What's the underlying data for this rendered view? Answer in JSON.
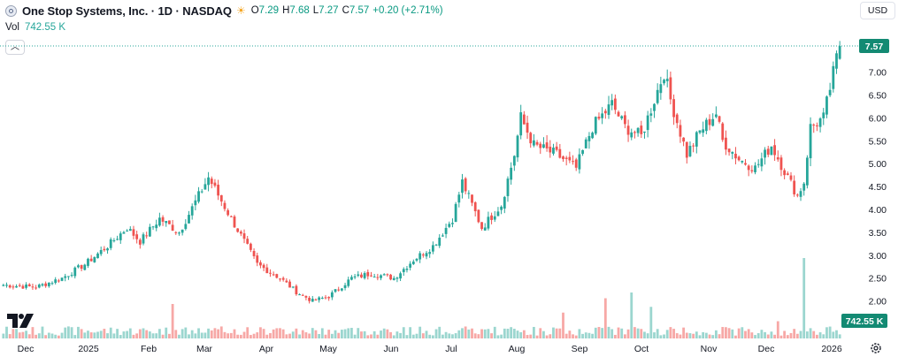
{
  "legend": {
    "title": "One Stop Systems, Inc. · 1D · NASDAQ",
    "sun_icon": "market-open-sun-icon",
    "open_label": "O",
    "open_value": "7.29",
    "high_label": "H",
    "high_value": "7.68",
    "low_label": "L",
    "low_value": "7.27",
    "close_label": "C",
    "close_value": "7.57",
    "change": "+0.20 (+2.71%)"
  },
  "volume": {
    "label": "Vol",
    "value": "742.55 K"
  },
  "controls": {
    "currency": "USD",
    "collapse_icon": "chevron-up-icon",
    "settings_icon": "gear-icon"
  },
  "colors": {
    "up": "#26a69a",
    "down": "#ef5350",
    "vol_up": "#9bd6cf",
    "vol_down": "#f7a8a6",
    "text": "#131722"
  },
  "chart_data": {
    "type": "candlestick",
    "price_axis": {
      "ticks": [
        "7.00",
        "6.50",
        "6.00",
        "5.50",
        "5.00",
        "4.50",
        "4.00",
        "3.50",
        "3.00",
        "2.50",
        "2.00"
      ],
      "range": [
        1.78,
        7.88
      ]
    },
    "time_axis": [
      "Dec",
      "2025",
      "Feb",
      "Mar",
      "Apr",
      "May",
      "Jun",
      "Jul",
      "Aug",
      "Sep",
      "Oct",
      "Nov",
      "Dec",
      "2026"
    ],
    "last_price_label": "7.57",
    "last_volume_label": "742.55 K",
    "anchors": [
      [
        0,
        2.35
      ],
      [
        10,
        2.3
      ],
      [
        18,
        2.5
      ],
      [
        25,
        2.8
      ],
      [
        32,
        3.2
      ],
      [
        38,
        3.6
      ],
      [
        42,
        3.3
      ],
      [
        48,
        3.8
      ],
      [
        54,
        3.5
      ],
      [
        60,
        4.3
      ],
      [
        63,
        4.7
      ],
      [
        70,
        3.8
      ],
      [
        78,
        2.8
      ],
      [
        85,
        2.5
      ],
      [
        90,
        2.2
      ],
      [
        95,
        2.0
      ],
      [
        100,
        2.1
      ],
      [
        107,
        2.5
      ],
      [
        113,
        2.6
      ],
      [
        120,
        2.5
      ],
      [
        126,
        2.9
      ],
      [
        132,
        3.2
      ],
      [
        138,
        3.8
      ],
      [
        141,
        4.6
      ],
      [
        147,
        3.6
      ],
      [
        153,
        4.1
      ],
      [
        157,
        5.2
      ],
      [
        159,
        6.0
      ],
      [
        163,
        5.4
      ],
      [
        170,
        5.2
      ],
      [
        176,
        4.9
      ],
      [
        181,
        5.8
      ],
      [
        187,
        6.3
      ],
      [
        191,
        5.8
      ],
      [
        196,
        5.6
      ],
      [
        201,
        6.6
      ],
      [
        203,
        7.0
      ],
      [
        205,
        6.4
      ],
      [
        210,
        5.2
      ],
      [
        214,
        5.7
      ],
      [
        219,
        6.1
      ],
      [
        221,
        5.5
      ],
      [
        226,
        5.1
      ],
      [
        231,
        4.9
      ],
      [
        236,
        5.4
      ],
      [
        241,
        4.7
      ],
      [
        244,
        4.3
      ],
      [
        246,
        4.6
      ],
      [
        248,
        5.8
      ],
      [
        252,
        6.0
      ],
      [
        256,
        7.3
      ],
      [
        257,
        7.57
      ]
    ],
    "volume_spikes": [
      [
        52,
        6.0
      ],
      [
        172,
        4.5
      ],
      [
        185,
        7.0
      ],
      [
        193,
        8.0
      ],
      [
        199,
        5.5
      ],
      [
        238,
        3.0
      ],
      [
        246,
        14.0
      ]
    ]
  }
}
